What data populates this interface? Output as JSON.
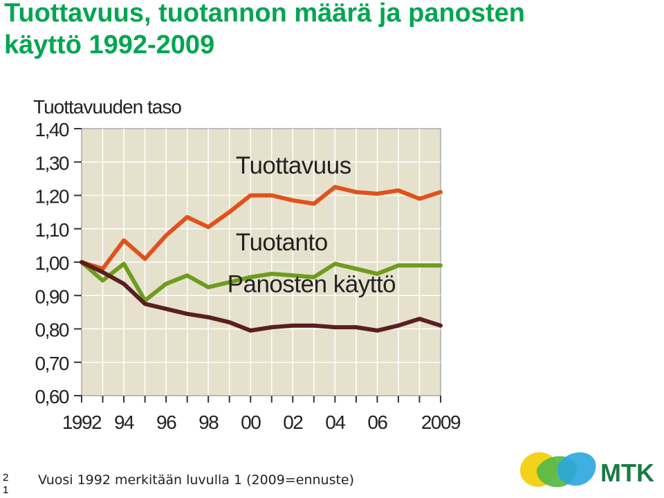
{
  "slide": {
    "title_line1": "Tuottavuus, tuotannon määrä ja panosten",
    "title_line2": "käyttö 1992-2009",
    "page_number": "2\n1",
    "footnote": "Vuosi 1992 merkitään luvulla 1 (2009=ennuste)",
    "logo_text": "MTK"
  },
  "colors": {
    "title": "#00a651",
    "plot_bg": "#e6e1cc",
    "tuottavuus": "#e0521c",
    "tuotanto": "#6e9c1e",
    "panosten": "#5a1f1f",
    "logo_text": "#1c7a45"
  },
  "chart_data": {
    "type": "line",
    "title": "Tuottavuuden taso",
    "xlabel": "",
    "ylabel": "",
    "xlim": [
      1992,
      2009
    ],
    "ylim": [
      0.6,
      1.4
    ],
    "grid": true,
    "legend": "inline labels",
    "x_tick_labels": [
      "1992",
      "94",
      "96",
      "98",
      "00",
      "02",
      "04",
      "06",
      "2009"
    ],
    "x_tick_positions": [
      1992,
      1994,
      1996,
      1998,
      2000,
      2002,
      2004,
      2006,
      2009
    ],
    "y_ticks": [
      0.6,
      0.7,
      0.8,
      0.9,
      1.0,
      1.1,
      1.2,
      1.3,
      1.4
    ],
    "y_tick_labels": [
      "0,60",
      "0,70",
      "0,80",
      "0,90",
      "1,00",
      "1,10",
      "1,20",
      "1,30",
      "1,40"
    ],
    "x": [
      1992,
      1993,
      1994,
      1995,
      1996,
      1997,
      1998,
      1999,
      2000,
      2001,
      2002,
      2003,
      2004,
      2005,
      2006,
      2007,
      2008,
      2009
    ],
    "series": [
      {
        "name": "Tuottavuus",
        "color": "#e0521c",
        "label_x": 1999.3,
        "label_y": 1.265,
        "values": [
          1.0,
          0.98,
          1.065,
          1.01,
          1.08,
          1.135,
          1.105,
          1.15,
          1.2,
          1.2,
          1.185,
          1.175,
          1.225,
          1.21,
          1.205,
          1.215,
          1.19,
          1.21
        ]
      },
      {
        "name": "Tuotanto",
        "color": "#6e9c1e",
        "label_x": 1999.3,
        "label_y": 1.035,
        "values": [
          1.0,
          0.945,
          0.995,
          0.885,
          0.935,
          0.96,
          0.925,
          0.94,
          0.955,
          0.965,
          0.96,
          0.955,
          0.995,
          0.98,
          0.965,
          0.99,
          0.99,
          0.99
        ]
      },
      {
        "name": "Panosten käyttö",
        "color": "#5a1f1f",
        "label_x": 1998.9,
        "label_y": 0.91,
        "values": [
          1.0,
          0.97,
          0.935,
          0.875,
          0.86,
          0.845,
          0.835,
          0.82,
          0.795,
          0.805,
          0.81,
          0.81,
          0.805,
          0.805,
          0.795,
          0.81,
          0.83,
          0.81
        ]
      }
    ]
  }
}
